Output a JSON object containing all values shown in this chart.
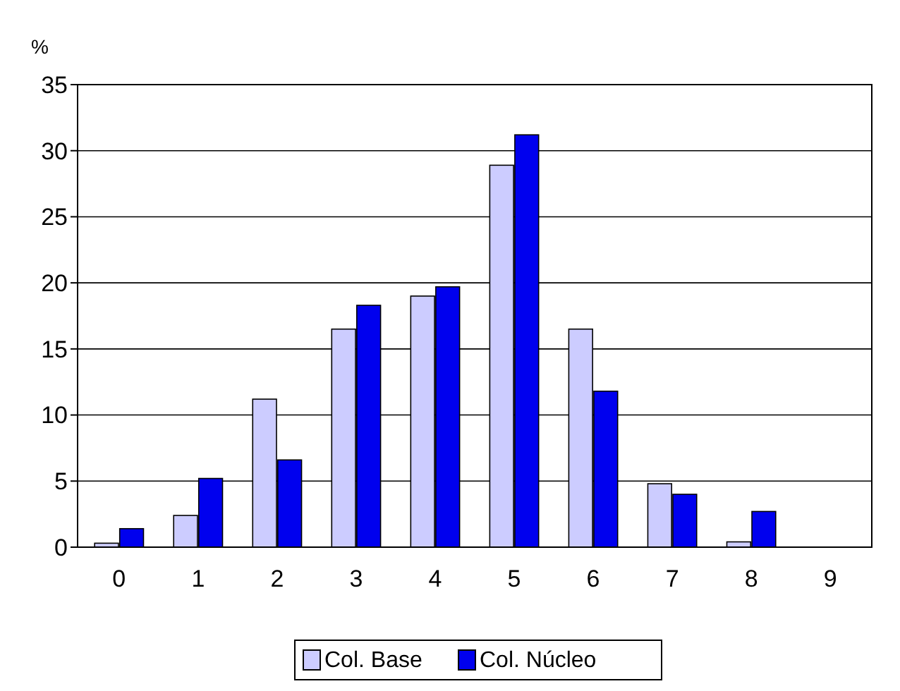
{
  "chart_data": {
    "type": "bar",
    "ylabel": "%",
    "categories": [
      "0",
      "1",
      "2",
      "3",
      "4",
      "5",
      "6",
      "7",
      "8",
      "9"
    ],
    "series": [
      {
        "name": "Col. Base",
        "color": "#ccccff",
        "values": [
          0.3,
          2.4,
          11.2,
          16.5,
          19,
          28.9,
          16.5,
          4.8,
          0.4,
          0
        ]
      },
      {
        "name": "Col. Núcleo",
        "color": "#0000ee",
        "values": [
          1.4,
          5.2,
          6.6,
          18.3,
          19.7,
          31.2,
          11.8,
          4,
          2.7,
          0
        ]
      }
    ],
    "ylim": [
      0,
      35
    ],
    "yticks": [
      0,
      5,
      10,
      15,
      20,
      25,
      30,
      35
    ],
    "grid": "y",
    "legend": "bottom"
  }
}
